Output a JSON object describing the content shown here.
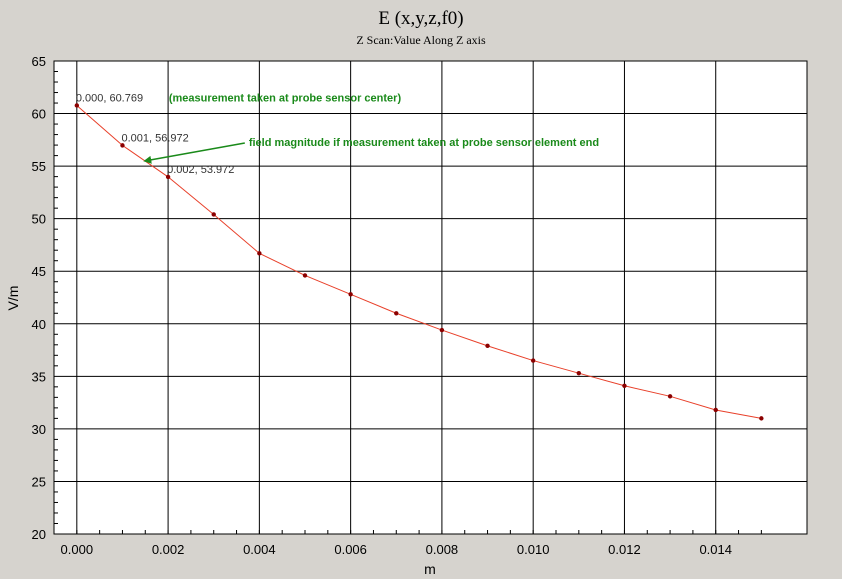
{
  "chart_data": {
    "type": "line",
    "title": "E (x,y,z,f0)",
    "subtitle": "Z Scan:Value Along Z axis",
    "xlabel": "m",
    "ylabel": "V/m",
    "xlim": [
      -0.0005,
      0.016
    ],
    "ylim": [
      20,
      65
    ],
    "xticks": [
      "0.000",
      "0.002",
      "0.004",
      "0.006",
      "0.008",
      "0.010",
      "0.012",
      "0.014"
    ],
    "xtick_values": [
      0,
      0.002,
      0.004,
      0.006,
      0.008,
      0.01,
      0.012,
      0.014
    ],
    "yticks": [
      "20",
      "25",
      "30",
      "35",
      "40",
      "45",
      "50",
      "55",
      "60",
      "65"
    ],
    "ytick_values": [
      20,
      25,
      30,
      35,
      40,
      45,
      50,
      55,
      60,
      65
    ],
    "grid": true,
    "series": [
      {
        "color": "#e8402a",
        "x": [
          0,
          0.001,
          0.002,
          0.003,
          0.004,
          0.005,
          0.006,
          0.007,
          0.008,
          0.009,
          0.01,
          0.011,
          0.012,
          0.013,
          0.014,
          0.015
        ],
        "y": [
          60.769,
          56.972,
          53.972,
          50.4,
          46.7,
          44.6,
          42.8,
          41.0,
          39.4,
          37.9,
          36.5,
          35.3,
          34.1,
          33.1,
          31.8,
          31.0
        ]
      }
    ],
    "data_labels": [
      {
        "x": 0,
        "y": 60.769,
        "text": "0.000, 60.769"
      },
      {
        "x": 0.001,
        "y": 56.972,
        "text": "0.001, 56.972"
      },
      {
        "x": 0.002,
        "y": 53.972,
        "text": "0.002, 53.972"
      }
    ],
    "annotations": [
      {
        "text": "(measurement taken at probe sensor center)",
        "color": "#1a8a1a"
      },
      {
        "text": "field magnitude if measurement taken at probe sensor element end",
        "color": "#1a8a1a",
        "arrow_to": {
          "x": 0.0015,
          "y": 55.5
        }
      }
    ]
  }
}
